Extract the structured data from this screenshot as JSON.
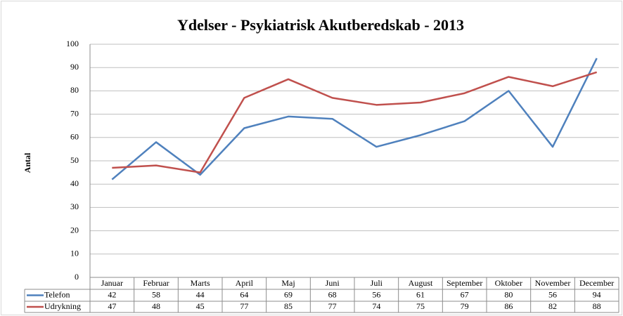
{
  "chart_data": {
    "type": "line",
    "title": "Ydelser - Psykiatrisk Akutberedskab - 2013",
    "y_label": "Antal",
    "categories": [
      "Januar",
      "Februar",
      "Marts",
      "April",
      "Maj",
      "Juni",
      "Juli",
      "August",
      "September",
      "Oktober",
      "November",
      "December"
    ],
    "series": [
      {
        "name": "Telefon",
        "color": "#4f81bd",
        "values": [
          42,
          58,
          44,
          64,
          69,
          68,
          56,
          61,
          67,
          80,
          56,
          94
        ]
      },
      {
        "name": "Udrykning",
        "color": "#c0504d",
        "values": [
          47,
          48,
          45,
          77,
          85,
          77,
          74,
          75,
          79,
          86,
          82,
          88
        ]
      }
    ],
    "ylim": [
      0,
      100
    ],
    "yticks": [
      0,
      10,
      20,
      30,
      40,
      50,
      60,
      70,
      80,
      90,
      100
    ],
    "grid": true,
    "legend": "table"
  }
}
